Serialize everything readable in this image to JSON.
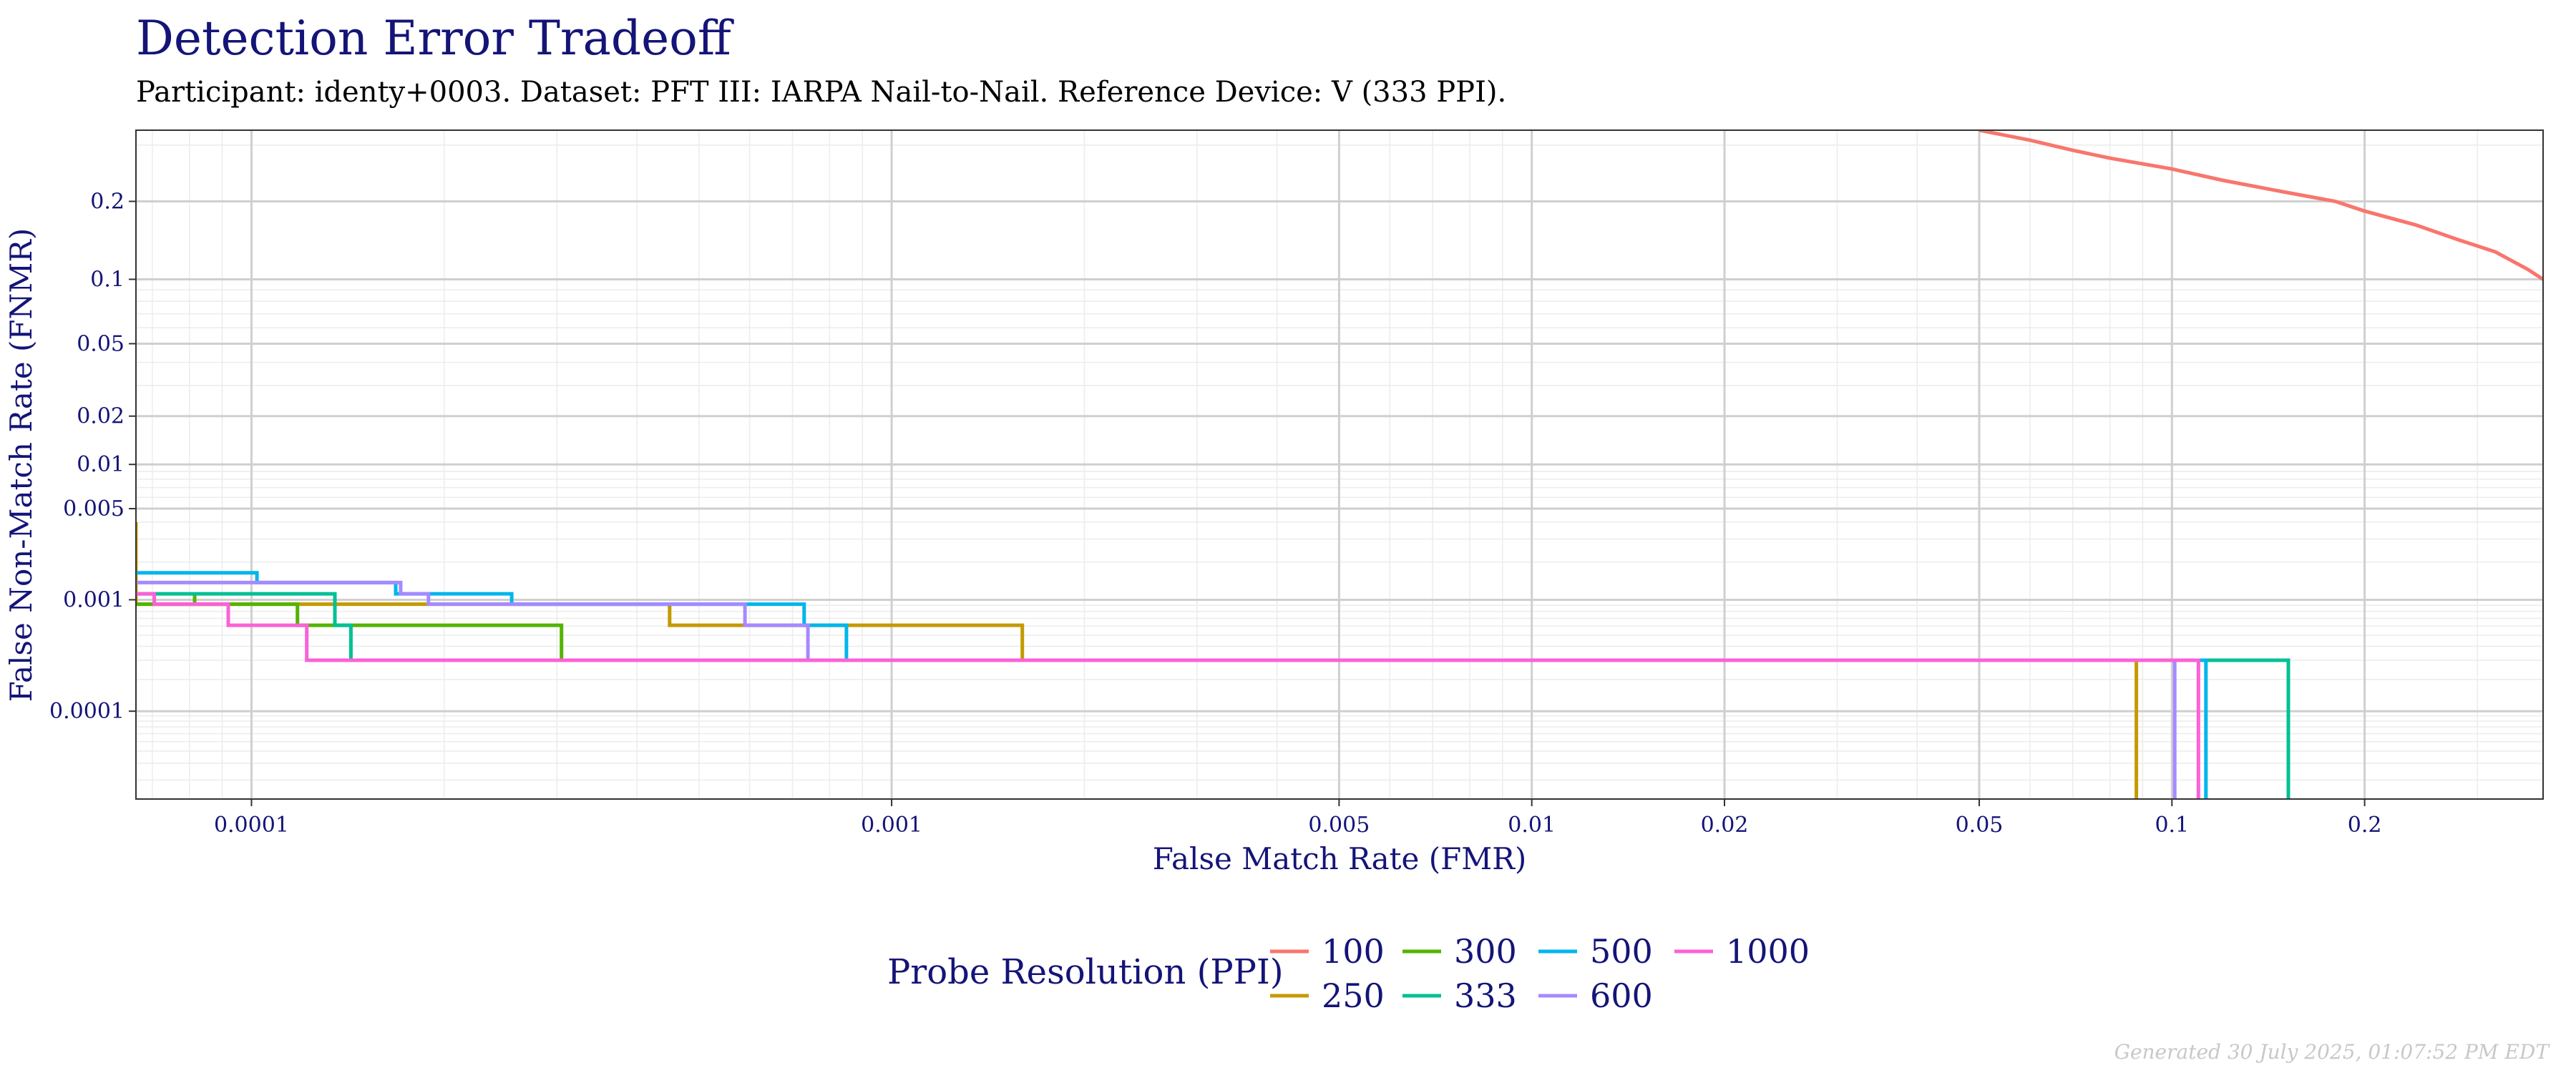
{
  "chart_data": {
    "type": "line",
    "title": "Detection Error Tradeoff",
    "subtitle": "Participant: identy+0003. Dataset: PFT III: IARPA Nail-to-Nail. Reference Device: V (333 PPI).",
    "xlabel": "False Match Rate (FMR)",
    "ylabel": "False Non-Match Rate (FNMR)",
    "x_scale": "log",
    "y_scale": "probit",
    "xlim": [
      6.6e-05,
      0.38
    ],
    "ylim": [
      1.25e-05,
      0.33
    ],
    "x_ticks": [
      {
        "value": 0.0001,
        "label": "0.0001"
      },
      {
        "value": 0.001,
        "label": "0.001"
      },
      {
        "value": 0.005,
        "label": "0.005"
      },
      {
        "value": 0.01,
        "label": "0.01"
      },
      {
        "value": 0.02,
        "label": "0.02"
      },
      {
        "value": 0.05,
        "label": "0.05"
      },
      {
        "value": 0.1,
        "label": "0.1"
      },
      {
        "value": 0.2,
        "label": "0.2"
      }
    ],
    "y_ticks": [
      {
        "value": 0.0001,
        "label": "0.0001"
      },
      {
        "value": 0.001,
        "label": "0.001"
      },
      {
        "value": 0.005,
        "label": "0.005"
      },
      {
        "value": 0.01,
        "label": "0.01"
      },
      {
        "value": 0.02,
        "label": "0.02"
      },
      {
        "value": 0.05,
        "label": "0.05"
      },
      {
        "value": 0.1,
        "label": "0.1"
      },
      {
        "value": 0.2,
        "label": "0.2"
      }
    ],
    "grid": true,
    "legend_position": "bottom",
    "legend_title": "Probe Resolution (PPI)",
    "series": [
      {
        "name": "100",
        "color": "#F8766D",
        "points": [
          [
            0.05,
            0.33
          ],
          [
            0.06,
            0.31
          ],
          [
            0.07,
            0.29
          ],
          [
            0.08,
            0.275
          ],
          [
            0.1,
            0.255
          ],
          [
            0.12,
            0.235
          ],
          [
            0.15,
            0.215
          ],
          [
            0.18,
            0.2
          ],
          [
            0.2,
            0.185
          ],
          [
            0.24,
            0.165
          ],
          [
            0.28,
            0.145
          ],
          [
            0.32,
            0.13
          ],
          [
            0.36,
            0.11
          ],
          [
            0.38,
            0.1
          ]
        ]
      },
      {
        "name": "250",
        "color": "#C49A00",
        "points": [
          [
            6.6e-05,
            0.004
          ],
          [
            6.6e-05,
            0.00092
          ],
          [
            7.15e-05,
            0.00092
          ],
          [
            7.15e-05,
            0.00092
          ],
          [
            0.000182,
            0.00092
          ],
          [
            0.000182,
            0.00092
          ],
          [
            0.00045,
            0.00092
          ],
          [
            0.00045,
            0.00061
          ],
          [
            0.0016,
            0.00061
          ],
          [
            0.0016,
            0.0003
          ],
          [
            0.088,
            0.0003
          ],
          [
            0.088,
            1.25e-05
          ]
        ]
      },
      {
        "name": "300",
        "color": "#53B400",
        "points": [
          [
            6.6e-05,
            0.00092
          ],
          [
            8.15e-05,
            0.00092
          ],
          [
            8.15e-05,
            0.00112
          ],
          [
            8.15e-05,
            0.00092
          ],
          [
            0.000118,
            0.00092
          ],
          [
            0.000118,
            0.00061
          ],
          [
            0.000305,
            0.00061
          ],
          [
            0.000305,
            0.0003
          ],
          [
            0.152,
            0.0003
          ],
          [
            0.152,
            1.25e-05
          ]
        ]
      },
      {
        "name": "333",
        "color": "#00C094",
        "points": [
          [
            6.6e-05,
            0.00112
          ],
          [
            0.000135,
            0.00112
          ],
          [
            0.000135,
            0.00061
          ],
          [
            0.000143,
            0.00061
          ],
          [
            0.000143,
            0.0003
          ],
          [
            0.152,
            0.0003
          ],
          [
            0.152,
            1.25e-05
          ]
        ]
      },
      {
        "name": "500",
        "color": "#00B6EB",
        "points": [
          [
            6.6e-05,
            0.00165
          ],
          [
            0.000102,
            0.00165
          ],
          [
            0.000102,
            0.00138
          ],
          [
            0.000168,
            0.00138
          ],
          [
            0.000168,
            0.00112
          ],
          [
            0.000255,
            0.00112
          ],
          [
            0.000255,
            0.00092
          ],
          [
            0.00073,
            0.00092
          ],
          [
            0.00073,
            0.00061
          ],
          [
            0.00085,
            0.00061
          ],
          [
            0.00085,
            0.0003
          ],
          [
            0.113,
            0.0003
          ],
          [
            0.113,
            1.25e-05
          ]
        ]
      },
      {
        "name": "600",
        "color": "#A58AFF",
        "points": [
          [
            6.6e-05,
            0.00138
          ],
          [
            0.000171,
            0.00138
          ],
          [
            0.000171,
            0.00112
          ],
          [
            0.000189,
            0.00112
          ],
          [
            0.000189,
            0.00092
          ],
          [
            0.00059,
            0.00092
          ],
          [
            0.00059,
            0.00061
          ],
          [
            0.00074,
            0.00061
          ],
          [
            0.00074,
            0.0003
          ],
          [
            0.101,
            0.0003
          ],
          [
            0.101,
            1.25e-05
          ]
        ]
      },
      {
        "name": "1000",
        "color": "#FB61D7",
        "points": [
          [
            6.6e-05,
            0.00112
          ],
          [
            7.05e-05,
            0.00112
          ],
          [
            7.05e-05,
            0.00092
          ],
          [
            9.2e-05,
            0.00092
          ],
          [
            9.2e-05,
            0.00061
          ],
          [
            0.000122,
            0.00061
          ],
          [
            0.000122,
            0.0003
          ],
          [
            0.11,
            0.0003
          ],
          [
            0.11,
            1.25e-05
          ]
        ]
      }
    ]
  },
  "footer": "Generated 30 July 2025, 01:07:52 PM EDT"
}
